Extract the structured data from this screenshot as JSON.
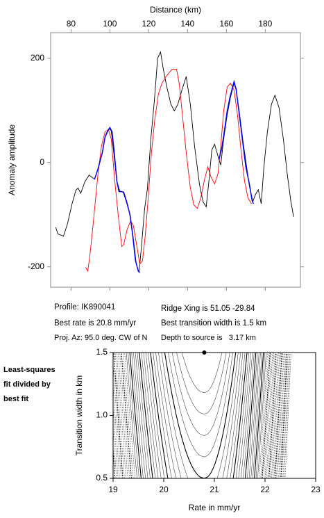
{
  "chart_data": [
    {
      "type": "line",
      "xlabel": "Distance (km)",
      "ylabel": "Anomaly amplitude",
      "xlim": [
        69.5,
        198.1
      ],
      "ylim": [
        -239,
        249
      ],
      "xticks": [
        80,
        100,
        120,
        140,
        160,
        180
      ],
      "yticks": [
        -200,
        0,
        200
      ],
      "series": [
        {
          "color": "#000000",
          "x": [
            72.1,
            73.2,
            76.1,
            78.2,
            80.4,
            82.5,
            83.6,
            85.0,
            87.1,
            89.3,
            92.1,
            93.9,
            96.1,
            97.5,
            99.6,
            100.7,
            101.8,
            103.6,
            104.6,
            106.8,
            108.2,
            110.0,
            111.8,
            113.6,
            115.0,
            116.4,
            117.9,
            119.3,
            121.1,
            122.9,
            124.6,
            126.1,
            127.5,
            129.3,
            131.4,
            133.2,
            135.0,
            137.1,
            139.3,
            141.4,
            143.6,
            146.1,
            147.9,
            149.6,
            151.1,
            152.5,
            153.9,
            155.7,
            157.1,
            158.6,
            160.4,
            162.1,
            163.9,
            165.0,
            166.8,
            168.6,
            170.4,
            171.8,
            173.6,
            175.0,
            176.4,
            177.9,
            179.3,
            181.1,
            183.2,
            185.0,
            187.1,
            189.3,
            191.4,
            193.2,
            194.6
          ],
          "values": [
            -124,
            -137,
            -141,
            -117,
            -81,
            -53,
            -49,
            -59,
            -37,
            -24,
            -32,
            -12,
            19,
            48,
            65,
            61,
            25,
            -37,
            -56,
            -56,
            -72,
            -95,
            -137,
            -195,
            -211,
            -155,
            -88,
            -51,
            45,
            119,
            200,
            212,
            179,
            145,
            112,
            99,
            112,
            139,
            165,
            112,
            32,
            -41,
            -75,
            -85,
            -32,
            24,
            35,
            12,
            -5,
            45,
            92,
            125,
            152,
            139,
            92,
            39,
            -8,
            -45,
            -75,
            -61,
            -52,
            -79,
            -8,
            59,
            112,
            129,
            105,
            45,
            -24,
            -75,
            -104
          ]
        },
        {
          "color": "#ff0000",
          "x": [
            87.5,
            88.6,
            89.6,
            91.1,
            92.5,
            93.9,
            95.7,
            97.5,
            99.3,
            100.7,
            102.5,
            104.3,
            106.1,
            107.1,
            108.9,
            110.7,
            112.1,
            113.9,
            115.4,
            116.8,
            118.2,
            119.6,
            121.4,
            123.2,
            125.0,
            126.8,
            128.6,
            130.4,
            132.1,
            134.3,
            135.7,
            137.5,
            139.3,
            141.4,
            143.2,
            145.0,
            146.8,
            148.6,
            150.4,
            152.1,
            153.9,
            155.7,
            157.1,
            158.6,
            160.4,
            162.1,
            163.9,
            165.7,
            167.5,
            169.3,
            171.1,
            172.9
          ],
          "values": [
            -201,
            -208,
            -181,
            -128,
            -75,
            -21,
            32,
            59,
            63,
            45,
            -35,
            -101,
            -161,
            -157,
            -128,
            -112,
            -121,
            -161,
            -195,
            -188,
            -141,
            -75,
            19,
            85,
            132,
            152,
            163,
            172,
            179,
            179,
            152,
            85,
            19,
            -48,
            -81,
            -88,
            -68,
            -35,
            -8,
            -28,
            -41,
            -21,
            32,
            99,
            145,
            152,
            139,
            92,
            25,
            -35,
            -68,
            -79
          ]
        },
        {
          "color": "#0000ff",
          "x": [
            92.1,
            93.9,
            96.1,
            97.5,
            98.9,
            100.0,
            101.1,
            102.1,
            103.6,
            105.0,
            107.1,
            108.6,
            110.4,
            111.8,
            113.2,
            114.6,
            115.4
          ],
          "values": [
            -32,
            -12,
            19,
            49,
            61,
            67,
            59,
            25,
            -37,
            -55,
            -57,
            -75,
            -101,
            -141,
            -188,
            -208,
            -211
          ]
        },
        {
          "color": "#0000ff",
          "x": [
            156.1,
            157.5,
            158.9,
            160.4,
            161.8,
            163.2,
            163.9,
            165.0,
            166.4,
            168.2,
            170.0,
            171.8,
            173.2,
            173.9
          ],
          "values": [
            5,
            25,
            59,
            99,
            125,
            145,
            155,
            141,
            99,
            45,
            -8,
            -41,
            -72,
            -79
          ]
        }
      ]
    },
    {
      "type": "contour",
      "xlabel": "Rate in mm/yr",
      "ylabel": "Transition width in km",
      "xlim": [
        19,
        23
      ],
      "ylim": [
        0.5,
        1.5
      ],
      "xticks": [
        19,
        20,
        21,
        22,
        23
      ],
      "yticks": [
        {
          "value": 0.5,
          "label": "0.5"
        },
        {
          "value": 1.0,
          "label": "1.0"
        },
        {
          "value": 1.5,
          "label": "1.5"
        }
      ],
      "best_fit": {
        "x": 20.8,
        "y": 1.5
      }
    }
  ],
  "info": [
    "Profile: IK890041",
    "Best rate is 20.8 mm/yr",
    "Proj. Az: 95.0 deg. CW of N",
    "Ridge Xing is 51.05 -29.84",
    "Best transition width is 1.5 km",
    "Depth to source is   3.17 km"
  ],
  "side_note": [
    "Least-squares",
    "fit divided by",
    "best fit"
  ]
}
